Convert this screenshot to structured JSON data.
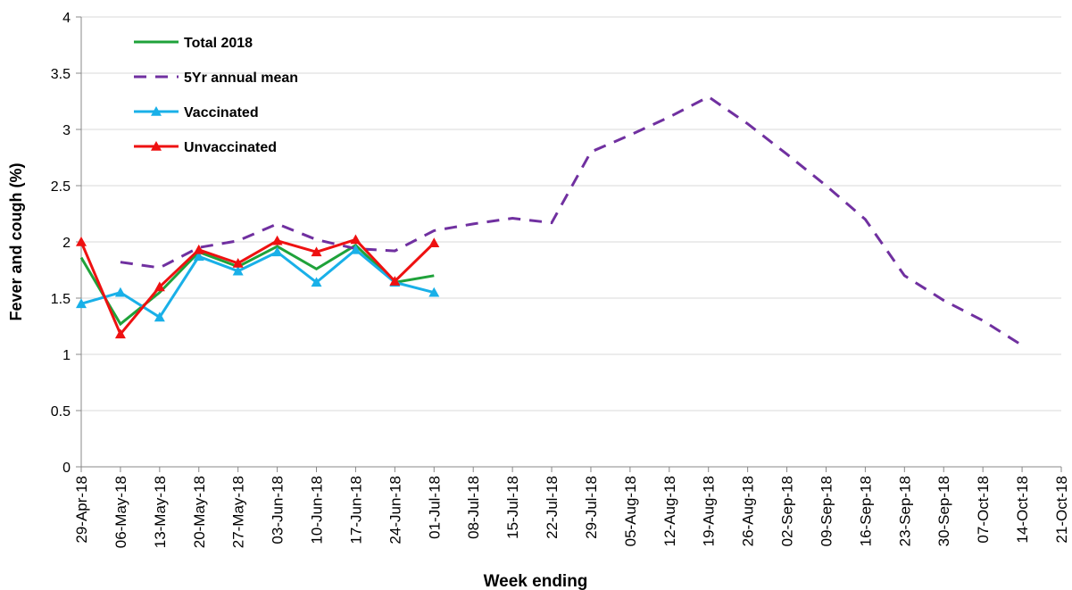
{
  "chart_data": {
    "type": "line",
    "x_label": "Week ending",
    "y_label": "Fever and cough (%)",
    "categories": [
      "29-Apr-18",
      "06-May-18",
      "13-May-18",
      "20-May-18",
      "27-May-18",
      "03-Jun-18",
      "10-Jun-18",
      "17-Jun-18",
      "24-Jun-18",
      "01-Jul-18",
      "08-Jul-18",
      "15-Jul-18",
      "22-Jul-18",
      "29-Jul-18",
      "05-Aug-18",
      "12-Aug-18",
      "19-Aug-18",
      "26-Aug-18",
      "02-Sep-18",
      "09-Sep-18",
      "16-Sep-18",
      "23-Sep-18",
      "30-Sep-18",
      "07-Oct-18",
      "14-Oct-18",
      "21-Oct-18"
    ],
    "series": [
      {
        "name": "Total 2018",
        "color": "#1fa23a",
        "dash": false,
        "marker": null,
        "values": [
          1.86,
          1.27,
          1.55,
          1.91,
          1.78,
          1.96,
          1.76,
          1.97,
          1.64,
          1.7,
          null,
          null,
          null,
          null,
          null,
          null,
          null,
          null,
          null,
          null,
          null,
          null,
          null,
          null,
          null,
          null
        ]
      },
      {
        "name": "5Yr annual mean",
        "color": "#7030a0",
        "dash": true,
        "marker": null,
        "values": [
          null,
          1.82,
          1.77,
          1.95,
          2.01,
          2.16,
          2.02,
          1.94,
          1.92,
          2.1,
          2.16,
          2.21,
          2.17,
          2.8,
          2.95,
          3.11,
          3.29,
          3.05,
          2.78,
          2.5,
          2.2,
          1.7,
          1.48,
          1.3,
          1.08,
          null
        ]
      },
      {
        "name": "Vaccinated",
        "color": "#19b0e8",
        "dash": false,
        "marker": "triangle",
        "values": [
          1.45,
          1.55,
          1.33,
          1.87,
          1.74,
          1.91,
          1.64,
          1.93,
          1.64,
          1.55,
          null,
          null,
          null,
          null,
          null,
          null,
          null,
          null,
          null,
          null,
          null,
          null,
          null,
          null,
          null,
          null
        ]
      },
      {
        "name": "Unvaccinated",
        "color": "#ee1111",
        "dash": false,
        "marker": "triangle",
        "values": [
          2.0,
          1.18,
          1.6,
          1.93,
          1.81,
          2.01,
          1.91,
          2.02,
          1.65,
          1.99,
          null,
          null,
          null,
          null,
          null,
          null,
          null,
          null,
          null,
          null,
          null,
          null,
          null,
          null,
          null,
          null
        ]
      }
    ],
    "ylim": [
      0,
      4
    ],
    "yticks": [
      0,
      0.5,
      1,
      1.5,
      2,
      2.5,
      3,
      3.5,
      4
    ],
    "grid": true
  }
}
